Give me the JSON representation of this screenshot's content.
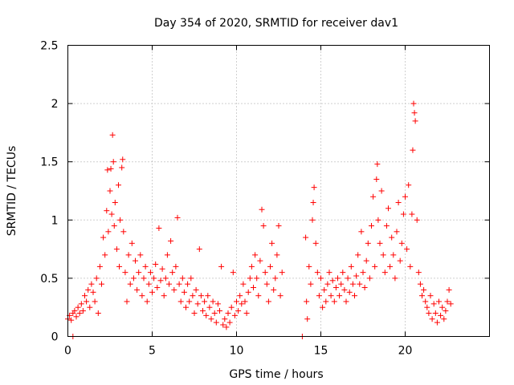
{
  "chart_data": {
    "type": "scatter",
    "title": "Day 354 of 2020, SRMTID for receiver dav1",
    "xlabel": "GPS time / hours",
    "ylabel": "SRMTID / TECUs",
    "xlim": [
      0,
      25
    ],
    "ylim": [
      0,
      2.5
    ],
    "xticks": [
      0,
      5,
      10,
      15,
      20
    ],
    "xtick_labels": [
      "0",
      "5",
      "10",
      "15",
      "20"
    ],
    "yticks": [
      0,
      0.5,
      1,
      1.5,
      2,
      2.5
    ],
    "ytick_labels": [
      "0",
      "0.5",
      "1",
      "1.5",
      "2",
      "2.5"
    ],
    "grid": true,
    "marker": "+",
    "color": "#ff0000",
    "series": [
      {
        "name": "dav1",
        "points": [
          [
            0.0,
            0.15
          ],
          [
            0.1,
            0.18
          ],
          [
            0.2,
            0.14
          ],
          [
            0.3,
            0.2
          ],
          [
            0.3,
            0.0
          ],
          [
            0.4,
            0.22
          ],
          [
            0.5,
            0.17
          ],
          [
            0.6,
            0.25
          ],
          [
            0.7,
            0.2
          ],
          [
            0.8,
            0.28
          ],
          [
            0.9,
            0.22
          ],
          [
            1.0,
            0.35
          ],
          [
            1.1,
            0.3
          ],
          [
            1.2,
            0.4
          ],
          [
            1.3,
            0.25
          ],
          [
            1.4,
            0.45
          ],
          [
            1.5,
            0.38
          ],
          [
            1.6,
            0.3
          ],
          [
            1.7,
            0.5
          ],
          [
            1.8,
            0.2
          ],
          [
            1.9,
            0.6
          ],
          [
            2.0,
            0.45
          ],
          [
            2.1,
            0.85
          ],
          [
            2.2,
            0.7
          ],
          [
            2.3,
            1.08
          ],
          [
            2.35,
            1.43
          ],
          [
            2.4,
            0.9
          ],
          [
            2.5,
            1.25
          ],
          [
            2.55,
            1.44
          ],
          [
            2.6,
            1.05
          ],
          [
            2.65,
            1.73
          ],
          [
            2.7,
            1.5
          ],
          [
            2.75,
            0.95
          ],
          [
            2.8,
            1.15
          ],
          [
            2.9,
            0.75
          ],
          [
            3.0,
            1.3
          ],
          [
            3.05,
            0.6
          ],
          [
            3.1,
            1.0
          ],
          [
            3.2,
            1.45
          ],
          [
            3.25,
            1.52
          ],
          [
            3.3,
            0.9
          ],
          [
            3.4,
            0.55
          ],
          [
            3.5,
            0.3
          ],
          [
            3.6,
            0.7
          ],
          [
            3.7,
            0.45
          ],
          [
            3.8,
            0.8
          ],
          [
            3.9,
            0.5
          ],
          [
            4.0,
            0.65
          ],
          [
            4.1,
            0.4
          ],
          [
            4.2,
            0.55
          ],
          [
            4.3,
            0.7
          ],
          [
            4.4,
            0.35
          ],
          [
            4.5,
            0.5
          ],
          [
            4.6,
            0.6
          ],
          [
            4.7,
            0.3
          ],
          [
            4.8,
            0.45
          ],
          [
            4.9,
            0.55
          ],
          [
            5.0,
            0.38
          ],
          [
            5.1,
            0.5
          ],
          [
            5.2,
            0.62
          ],
          [
            5.3,
            0.42
          ],
          [
            5.4,
            0.93
          ],
          [
            5.5,
            0.48
          ],
          [
            5.6,
            0.58
          ],
          [
            5.7,
            0.35
          ],
          [
            5.8,
            0.5
          ],
          [
            5.9,
            0.7
          ],
          [
            6.0,
            0.45
          ],
          [
            6.1,
            0.82
          ],
          [
            6.2,
            0.55
          ],
          [
            6.3,
            0.4
          ],
          [
            6.4,
            0.6
          ],
          [
            6.5,
            1.02
          ],
          [
            6.6,
            0.45
          ],
          [
            6.7,
            0.3
          ],
          [
            6.8,
            0.5
          ],
          [
            6.9,
            0.38
          ],
          [
            7.0,
            0.25
          ],
          [
            7.1,
            0.45
          ],
          [
            7.2,
            0.3
          ],
          [
            7.3,
            0.5
          ],
          [
            7.4,
            0.35
          ],
          [
            7.5,
            0.2
          ],
          [
            7.6,
            0.4
          ],
          [
            7.7,
            0.28
          ],
          [
            7.8,
            0.75
          ],
          [
            7.9,
            0.35
          ],
          [
            8.0,
            0.22
          ],
          [
            8.1,
            0.3
          ],
          [
            8.2,
            0.18
          ],
          [
            8.3,
            0.35
          ],
          [
            8.4,
            0.25
          ],
          [
            8.5,
            0.15
          ],
          [
            8.6,
            0.3
          ],
          [
            8.7,
            0.2
          ],
          [
            8.8,
            0.12
          ],
          [
            8.9,
            0.28
          ],
          [
            9.0,
            0.22
          ],
          [
            9.1,
            0.6
          ],
          [
            9.2,
            0.1
          ],
          [
            9.3,
            0.15
          ],
          [
            9.4,
            0.08
          ],
          [
            9.5,
            0.2
          ],
          [
            9.6,
            0.12
          ],
          [
            9.7,
            0.25
          ],
          [
            9.8,
            0.55
          ],
          [
            9.9,
            0.18
          ],
          [
            10.0,
            0.3
          ],
          [
            10.1,
            0.22
          ],
          [
            10.2,
            0.35
          ],
          [
            10.3,
            0.28
          ],
          [
            10.4,
            0.45
          ],
          [
            10.5,
            0.3
          ],
          [
            10.6,
            0.2
          ],
          [
            10.7,
            0.38
          ],
          [
            10.8,
            0.5
          ],
          [
            10.9,
            0.6
          ],
          [
            11.0,
            0.42
          ],
          [
            11.1,
            0.7
          ],
          [
            11.2,
            0.5
          ],
          [
            11.3,
            0.35
          ],
          [
            11.4,
            0.65
          ],
          [
            11.5,
            1.09
          ],
          [
            11.6,
            0.95
          ],
          [
            11.7,
            0.55
          ],
          [
            11.8,
            0.45
          ],
          [
            11.9,
            0.3
          ],
          [
            12.0,
            0.6
          ],
          [
            12.1,
            0.8
          ],
          [
            12.2,
            0.4
          ],
          [
            12.3,
            0.5
          ],
          [
            12.4,
            0.7
          ],
          [
            12.5,
            0.95
          ],
          [
            12.6,
            0.35
          ],
          [
            12.7,
            0.55
          ],
          [
            13.9,
            0.0
          ],
          [
            14.1,
            0.85
          ],
          [
            14.15,
            0.3
          ],
          [
            14.2,
            0.15
          ],
          [
            14.3,
            0.6
          ],
          [
            14.4,
            0.45
          ],
          [
            14.5,
            1.0
          ],
          [
            14.55,
            1.15
          ],
          [
            14.6,
            1.28
          ],
          [
            14.7,
            0.8
          ],
          [
            14.8,
            0.55
          ],
          [
            14.9,
            0.35
          ],
          [
            15.0,
            0.5
          ],
          [
            15.1,
            0.25
          ],
          [
            15.2,
            0.4
          ],
          [
            15.3,
            0.3
          ],
          [
            15.4,
            0.45
          ],
          [
            15.5,
            0.55
          ],
          [
            15.6,
            0.35
          ],
          [
            15.7,
            0.48
          ],
          [
            15.8,
            0.3
          ],
          [
            15.9,
            0.42
          ],
          [
            16.0,
            0.5
          ],
          [
            16.1,
            0.35
          ],
          [
            16.2,
            0.45
          ],
          [
            16.3,
            0.55
          ],
          [
            16.4,
            0.4
          ],
          [
            16.5,
            0.3
          ],
          [
            16.6,
            0.5
          ],
          [
            16.7,
            0.38
          ],
          [
            16.8,
            0.6
          ],
          [
            16.9,
            0.45
          ],
          [
            17.0,
            0.35
          ],
          [
            17.1,
            0.52
          ],
          [
            17.2,
            0.7
          ],
          [
            17.3,
            0.45
          ],
          [
            17.4,
            0.9
          ],
          [
            17.5,
            0.55
          ],
          [
            17.6,
            0.42
          ],
          [
            17.7,
            0.65
          ],
          [
            17.8,
            0.8
          ],
          [
            17.9,
            0.5
          ],
          [
            18.0,
            0.95
          ],
          [
            18.1,
            1.2
          ],
          [
            18.2,
            0.6
          ],
          [
            18.3,
            1.35
          ],
          [
            18.35,
            1.48
          ],
          [
            18.4,
            1.0
          ],
          [
            18.5,
            0.8
          ],
          [
            18.6,
            1.25
          ],
          [
            18.7,
            0.7
          ],
          [
            18.8,
            0.55
          ],
          [
            18.9,
            0.95
          ],
          [
            19.0,
            1.1
          ],
          [
            19.1,
            0.6
          ],
          [
            19.2,
            0.85
          ],
          [
            19.3,
            0.7
          ],
          [
            19.4,
            0.5
          ],
          [
            19.5,
            0.9
          ],
          [
            19.6,
            1.15
          ],
          [
            19.7,
            0.65
          ],
          [
            19.8,
            0.8
          ],
          [
            19.9,
            1.05
          ],
          [
            20.0,
            1.2
          ],
          [
            20.1,
            0.75
          ],
          [
            20.2,
            1.3
          ],
          [
            20.3,
            0.6
          ],
          [
            20.4,
            1.05
          ],
          [
            20.45,
            1.6
          ],
          [
            20.5,
            2.0
          ],
          [
            20.55,
            1.92
          ],
          [
            20.6,
            1.85
          ],
          [
            20.7,
            1.0
          ],
          [
            20.8,
            0.55
          ],
          [
            20.9,
            0.45
          ],
          [
            21.0,
            0.35
          ],
          [
            21.1,
            0.4
          ],
          [
            21.2,
            0.3
          ],
          [
            21.3,
            0.25
          ],
          [
            21.4,
            0.2
          ],
          [
            21.5,
            0.35
          ],
          [
            21.6,
            0.15
          ],
          [
            21.7,
            0.28
          ],
          [
            21.8,
            0.2
          ],
          [
            21.9,
            0.12
          ],
          [
            22.0,
            0.3
          ],
          [
            22.1,
            0.18
          ],
          [
            22.2,
            0.25
          ],
          [
            22.3,
            0.15
          ],
          [
            22.4,
            0.22
          ],
          [
            22.5,
            0.3
          ],
          [
            22.6,
            0.4
          ],
          [
            22.7,
            0.28
          ]
        ]
      }
    ]
  }
}
